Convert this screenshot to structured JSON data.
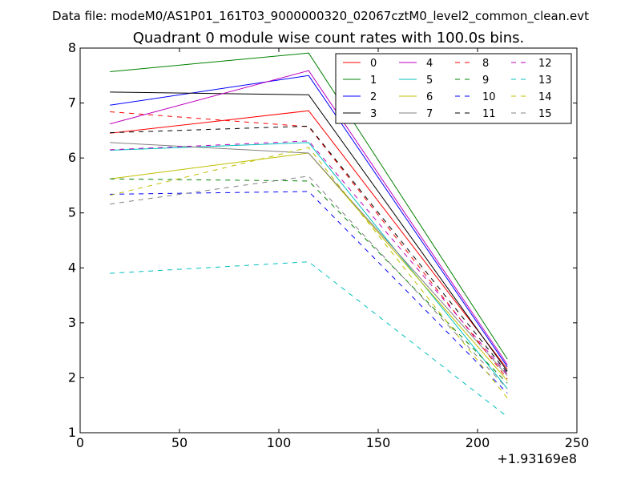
{
  "suptitle": "Data file: modeM0/AS1P01_161T03_9000000320_02067cztM0_level2_common_clean.evt",
  "chart_data": {
    "type": "line",
    "title": "Quadrant 0 module wise count rates with 100.0s bins.",
    "xlabel": "",
    "ylabel": "",
    "x_offset_label": "+1.93169e8",
    "xlim": [
      0,
      250
    ],
    "ylim": [
      1,
      8
    ],
    "xticks": [
      0,
      50,
      100,
      150,
      200,
      250
    ],
    "yticks": [
      1,
      2,
      3,
      4,
      5,
      6,
      7,
      8
    ],
    "x": [
      15,
      115,
      215
    ],
    "legend_position": "top-right",
    "series": [
      {
        "name": "0",
        "color": "#ff0000",
        "dashed": false,
        "values": [
          6.45,
          6.86,
          2.16
        ]
      },
      {
        "name": "1",
        "color": "#008000",
        "dashed": false,
        "values": [
          7.57,
          7.91,
          2.34
        ]
      },
      {
        "name": "2",
        "color": "#0000ff",
        "dashed": false,
        "values": [
          6.96,
          7.5,
          2.2
        ]
      },
      {
        "name": "3",
        "color": "#000000",
        "dashed": false,
        "values": [
          7.2,
          7.15,
          2.12
        ]
      },
      {
        "name": "4",
        "color": "#bf00bf",
        "dashed": false,
        "values": [
          6.62,
          7.59,
          2.24
        ]
      },
      {
        "name": "5",
        "color": "#00bfbf",
        "dashed": false,
        "values": [
          6.14,
          6.28,
          1.8
        ]
      },
      {
        "name": "6",
        "color": "#bfbf00",
        "dashed": false,
        "values": [
          5.62,
          6.09,
          1.95
        ]
      },
      {
        "name": "7",
        "color": "#808080",
        "dashed": false,
        "values": [
          6.28,
          6.09,
          2.04
        ]
      },
      {
        "name": "8",
        "color": "#ff0000",
        "dashed": true,
        "values": [
          6.84,
          6.57,
          1.98
        ]
      },
      {
        "name": "9",
        "color": "#008000",
        "dashed": true,
        "values": [
          5.62,
          5.58,
          1.9
        ]
      },
      {
        "name": "10",
        "color": "#0000ff",
        "dashed": true,
        "values": [
          5.34,
          5.39,
          1.72
        ]
      },
      {
        "name": "11",
        "color": "#000000",
        "dashed": true,
        "values": [
          6.46,
          6.58,
          2.09
        ]
      },
      {
        "name": "12",
        "color": "#bf00bf",
        "dashed": true,
        "values": [
          6.15,
          6.31,
          2.06
        ]
      },
      {
        "name": "13",
        "color": "#00bfbf",
        "dashed": true,
        "values": [
          3.9,
          4.11,
          1.29
        ]
      },
      {
        "name": "14",
        "color": "#bfbf00",
        "dashed": true,
        "values": [
          5.32,
          6.19,
          1.63
        ]
      },
      {
        "name": "15",
        "color": "#808080",
        "dashed": true,
        "values": [
          5.16,
          5.67,
          1.8
        ]
      }
    ]
  }
}
